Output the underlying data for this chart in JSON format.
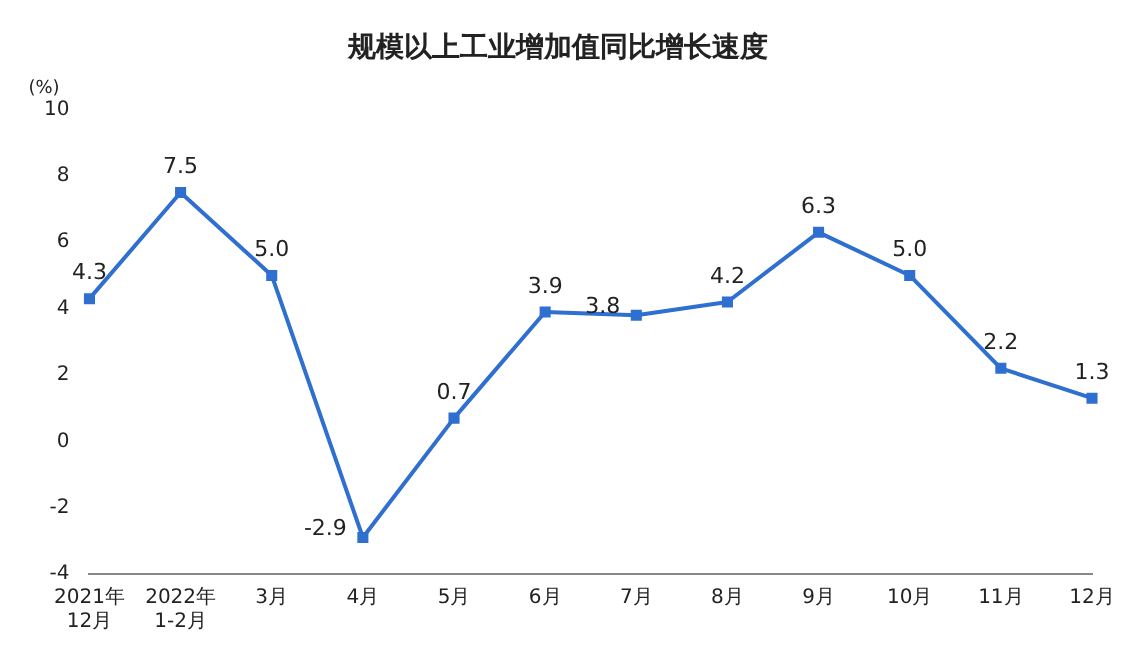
{
  "chart_data": {
    "type": "line",
    "title": "规模以上工业增加值同比增长速度",
    "ylabel": "(%)",
    "categories": [
      "2021年\n12月",
      "2022年\n1-2月",
      "3月",
      "4月",
      "5月",
      "6月",
      "7月",
      "8月",
      "9月",
      "10月",
      "11月",
      "12月"
    ],
    "series": [
      {
        "color": "#2e6fd0",
        "values": [
          4.3,
          7.5,
          5.0,
          -2.9,
          0.7,
          3.9,
          3.8,
          4.2,
          6.3,
          5.0,
          2.2,
          1.3
        ]
      }
    ],
    "value_labels": [
      "4.3",
      "7.5",
      "5.0",
      "-2.9",
      "0.7",
      "3.9",
      "3.8",
      "4.2",
      "6.3",
      "5.0",
      "2.2",
      "1.3"
    ],
    "ylim": [
      -4,
      10
    ],
    "yticks": [
      -4,
      -2,
      0,
      2,
      4,
      6,
      8,
      10
    ],
    "grid": false,
    "legend": false,
    "marker": "square",
    "line_style": "solid"
  }
}
